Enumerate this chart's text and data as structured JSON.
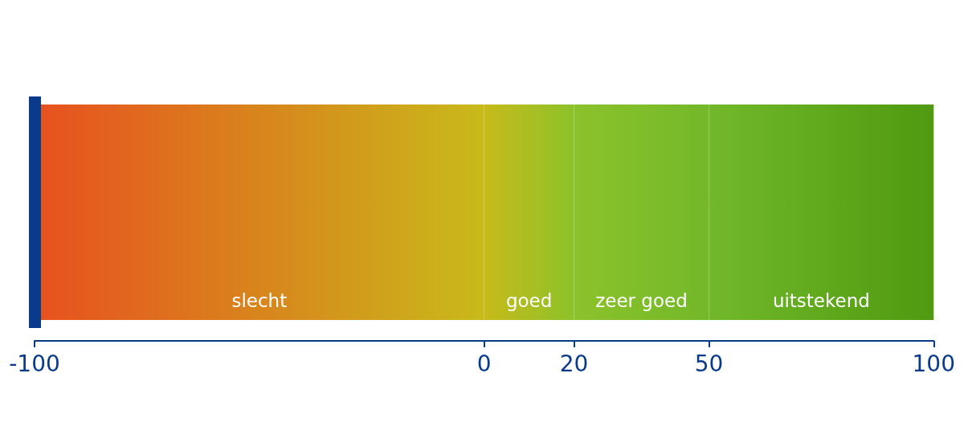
{
  "chart_data": {
    "type": "bar",
    "orientation": "horizontal",
    "categories": [
      null
    ],
    "xlim": [
      -100,
      100
    ],
    "xticks": [
      -100,
      0,
      20,
      50,
      100
    ],
    "series": [
      {
        "name": "slecht",
        "color": "#e8501f",
        "base": [
          -100
        ],
        "values": [
          100
        ]
      },
      {
        "name": "goed",
        "color": "#c8ba1a",
        "base": [
          0
        ],
        "values": [
          20
        ]
      },
      {
        "name": "zeer goed",
        "color": "#8cc22a",
        "base": [
          20
        ],
        "values": [
          30
        ]
      },
      {
        "name": "uitstekend",
        "color": "#72b82a",
        "base": [
          50
        ],
        "values": [
          50
        ]
      }
    ],
    "ref_lines": [
      {
        "axis": "x",
        "value": -100,
        "color": "#0a3a8a"
      }
    ],
    "tick_labels": "x"
  }
}
